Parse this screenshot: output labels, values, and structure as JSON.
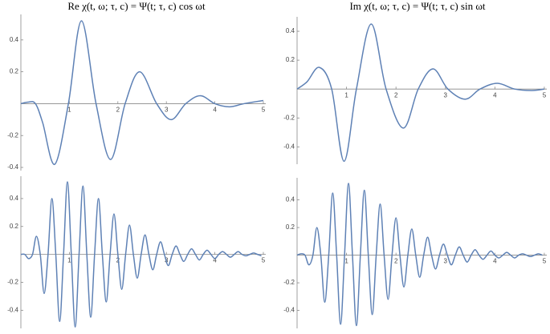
{
  "chart_data": [
    {
      "type": "line",
      "title": "Re χ(t, ω; τ, c) = Ψ(t; τ, c) cos ωt",
      "x": [
        0,
        0.15,
        0.3,
        0.45,
        0.7,
        0.98,
        1.25,
        1.55,
        1.85,
        2.15,
        2.45,
        2.8,
        3.1,
        3.4,
        3.7,
        4.0,
        4.3,
        4.6,
        5.0
      ],
      "values": [
        0,
        0.01,
        0,
        -0.12,
        -0.38,
        0,
        0.52,
        0,
        -0.35,
        0,
        0.2,
        0,
        -0.1,
        0,
        0.05,
        0,
        -0.02,
        0,
        0.02
      ],
      "color": "#5e81b5",
      "xlim": [
        0,
        5.05
      ],
      "ylim": [
        -0.42,
        0.56
      ],
      "xticks": [
        1,
        2,
        3,
        4,
        5
      ],
      "yticks": [
        -0.4,
        -0.2,
        0.2,
        0.4
      ]
    },
    {
      "type": "line",
      "title": "Im χ(t, ω; τ, c) = Ψ(t; τ, c) sin ωt",
      "x": [
        0,
        0.2,
        0.45,
        0.7,
        0.95,
        1.2,
        1.5,
        1.8,
        2.15,
        2.45,
        2.75,
        3.05,
        3.4,
        3.7,
        4.05,
        4.4,
        4.75,
        5.0
      ],
      "values": [
        0,
        0.05,
        0.15,
        0,
        -0.5,
        0,
        0.45,
        0,
        -0.27,
        0,
        0.14,
        0,
        -0.07,
        0,
        0.04,
        0,
        -0.01,
        0
      ],
      "color": "#5e81b5",
      "xlim": [
        0,
        5.05
      ],
      "ylim": [
        -0.52,
        0.5
      ],
      "xticks": [
        1,
        2,
        3,
        4,
        5
      ],
      "yticks": [
        -0.4,
        -0.2,
        0.2,
        0.4
      ]
    },
    {
      "type": "line",
      "x": [
        0,
        0.08,
        0.16,
        0.24,
        0.32,
        0.4,
        0.48,
        0.56,
        0.64,
        0.72,
        0.8,
        0.88,
        0.96,
        1.04,
        1.12,
        1.2,
        1.28,
        1.36,
        1.44,
        1.52,
        1.6,
        1.68,
        1.76,
        1.84,
        1.92,
        2,
        2.08,
        2.16,
        2.24,
        2.32,
        2.4,
        2.48,
        2.56,
        2.64,
        2.72,
        2.8,
        2.88,
        2.96,
        3.04,
        3.12,
        3.2,
        3.28,
        3.36,
        3.44,
        3.52,
        3.6,
        3.68,
        3.76,
        3.84,
        3.92,
        4,
        4.08,
        4.16,
        4.24,
        4.32,
        4.4,
        4.48,
        4.56,
        4.64,
        4.72,
        4.8,
        4.88,
        4.96
      ],
      "values": [
        0,
        0,
        -0.03,
        0,
        0.13,
        0,
        -0.28,
        0,
        0.4,
        0,
        -0.48,
        0,
        0.52,
        0,
        -0.52,
        0,
        0.49,
        0,
        -0.45,
        0,
        0.4,
        0,
        -0.34,
        0,
        0.29,
        0,
        -0.25,
        0,
        0.21,
        0,
        -0.17,
        0,
        0.14,
        0,
        -0.11,
        0,
        0.09,
        0,
        -0.08,
        0,
        0.06,
        0,
        -0.05,
        0,
        0.04,
        0,
        -0.04,
        0,
        0.03,
        0,
        -0.03,
        0,
        0.02,
        0,
        -0.02,
        0,
        0.02,
        0,
        -0.01,
        0,
        0.01,
        0,
        -0.01
      ],
      "color": "#5e81b5",
      "xlim": [
        0,
        5.05
      ],
      "ylim": [
        -0.53,
        0.56
      ],
      "xticks": [
        1,
        2,
        3,
        4,
        5
      ],
      "yticks": [
        -0.4,
        -0.2,
        0.2,
        0.4
      ]
    },
    {
      "type": "line",
      "x": [
        0,
        0.08,
        0.16,
        0.24,
        0.32,
        0.4,
        0.48,
        0.56,
        0.64,
        0.72,
        0.8,
        0.88,
        0.96,
        1.04,
        1.12,
        1.2,
        1.28,
        1.36,
        1.44,
        1.52,
        1.6,
        1.68,
        1.76,
        1.84,
        1.92,
        2,
        2.08,
        2.16,
        2.24,
        2.32,
        2.4,
        2.48,
        2.56,
        2.64,
        2.72,
        2.8,
        2.88,
        2.96,
        3.04,
        3.12,
        3.2,
        3.28,
        3.36,
        3.44,
        3.52,
        3.6,
        3.68,
        3.76,
        3.84,
        3.92,
        4,
        4.08,
        4.16,
        4.24,
        4.32,
        4.4,
        4.48,
        4.56,
        4.64,
        4.72,
        4.8,
        4.88,
        4.96
      ],
      "values": [
        0,
        0.01,
        0,
        -0.07,
        0,
        0.2,
        0,
        -0.34,
        0,
        0.45,
        0,
        -0.5,
        0,
        0.52,
        0,
        -0.51,
        0,
        0.47,
        0,
        -0.43,
        0,
        0.37,
        0,
        -0.32,
        0,
        0.27,
        0,
        -0.23,
        0,
        0.19,
        0,
        -0.16,
        0,
        0.13,
        0,
        -0.1,
        0,
        0.08,
        0,
        -0.07,
        0,
        0.06,
        0,
        -0.05,
        0,
        0.04,
        0,
        -0.03,
        0,
        0.03,
        0,
        -0.02,
        0,
        0.02,
        0,
        -0.02,
        0,
        0.01,
        0,
        -0.01,
        0,
        0.01,
        0
      ],
      "color": "#5e81b5",
      "xlim": [
        0,
        5.05
      ],
      "ylim": [
        -0.53,
        0.56
      ],
      "xticks": [
        1,
        2,
        3,
        4,
        5
      ],
      "yticks": [
        -0.4,
        -0.2,
        0.2,
        0.4
      ]
    }
  ]
}
